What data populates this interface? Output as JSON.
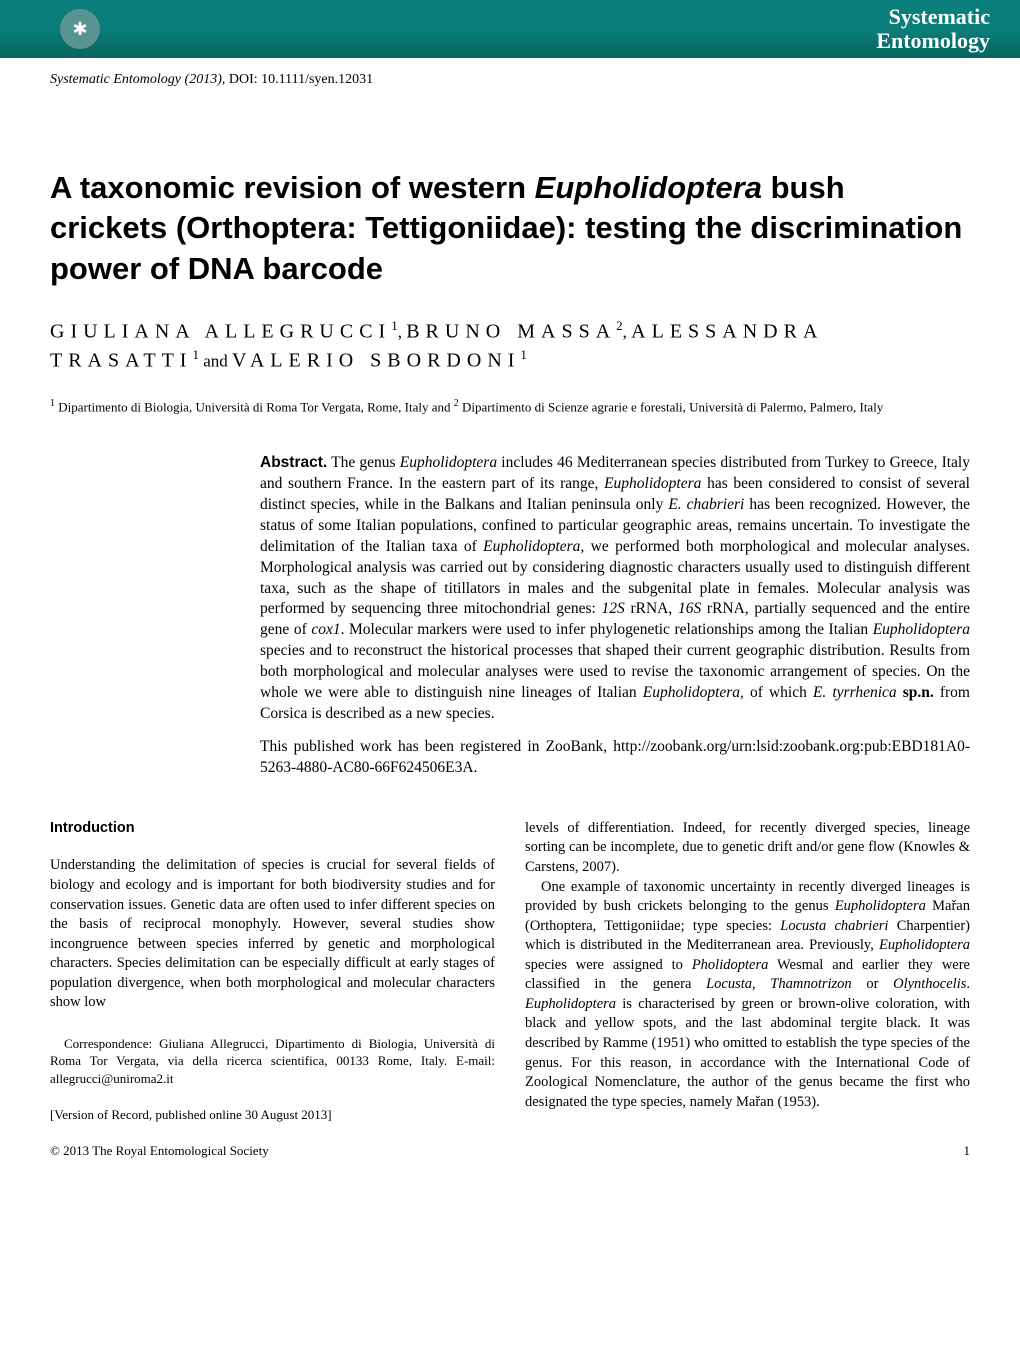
{
  "banner": {
    "journal_line1": "Systematic",
    "journal_line2": "Entomology",
    "background_color": "#0a7e7a",
    "text_color": "#ffffff"
  },
  "citation": {
    "journal": "Systematic Entomology",
    "year": "(2013),",
    "doi_label": "DOI:",
    "doi": "10.1111/syen.12031"
  },
  "title": {
    "part1": "A taxonomic revision of western ",
    "italic1": "Eupholidoptera",
    "part2": " bush crickets (Orthoptera: Tettigoniidae): testing the discrimination power of DNA barcode"
  },
  "authors": {
    "a1_name": "GIULIANA ALLEGRUCCI",
    "a1_sup": "1",
    "sep1": ", ",
    "a2_name": "BRUNO MASSA",
    "a2_sup": "2",
    "sep2": ", ",
    "a3_name": "ALESSANDRA TRASATTI",
    "a3_sup": "1",
    "and": " and ",
    "a4_name": "VALERIO SBORDONI",
    "a4_sup": "1"
  },
  "affiliations": {
    "sup1": "1",
    "aff1": " Dipartimento di Biologia, Università di Roma Tor Vergata, Rome, Italy  and ",
    "sup2": "2",
    "aff2": " Dipartimento di Scienze agrarie e forestali, Università di Palermo, Palmero, Italy"
  },
  "abstract": {
    "label": "Abstract.",
    "p1_part1": " The genus ",
    "p1_italic1": "Eupholidoptera",
    "p1_part2": " includes 46 Mediterranean species distributed from Turkey to Greece, Italy and southern France. In the eastern part of its range, ",
    "p1_italic2": "Eupholidoptera",
    "p1_part3": " has been considered to consist of several distinct species, while in the Balkans and Italian peninsula only ",
    "p1_italic3": "E. chabrieri",
    "p1_part4": " has been recognized. However, the status of some Italian populations, confined to particular geographic areas, remains uncertain. To investigate the delimitation of the Italian taxa of ",
    "p1_italic4": "Eupholidoptera",
    "p1_part5": ", we performed both morphological and molecular analyses. Morphological analysis was carried out by considering diagnostic characters usually used to distinguish different taxa, such as the shape of titillators in males and the subgenital plate in females. Molecular analysis was performed by sequencing three mitochondrial genes: ",
    "p1_italic5": "12S",
    "p1_part6": " rRNA, ",
    "p1_italic6": "16S",
    "p1_part7": " rRNA, partially sequenced and the entire gene of ",
    "p1_italic7": "cox1",
    "p1_part8": ". Molecular markers were used to infer phylogenetic relationships among the Italian ",
    "p1_italic8": "Eupholidoptera",
    "p1_part9": " species and to reconstruct the historical processes that shaped their current geographic distribution. Results from both morphological and molecular analyses were used to revise the taxonomic arrangement of species. On the whole we were able to distinguish nine lineages of Italian ",
    "p1_italic9": "Eupholidoptera",
    "p1_part10": ", of which ",
    "p1_italic10": "E. tyrrhenica",
    "p1_part11": " ",
    "p1_bold": "sp.n.",
    "p1_part12": " from Corsica is described as a new species.",
    "p2": "This published work has been registered in ZooBank, http://zoobank.org/urn:lsid:zoobank.org:pub:EBD181A0-5263-4880-AC80-66F624506E3A."
  },
  "intro": {
    "heading": "Introduction",
    "col1_p1": "Understanding the delimitation of species is crucial for several fields of biology and ecology and is important for both biodiversity studies and for conservation issues. Genetic data are often used to infer different species on the basis of reciprocal monophyly. However, several studies show incongruence between species inferred by genetic and morphological characters. Species delimitation can be especially difficult at early stages of population divergence, when both morphological and molecular characters show low",
    "col2_p1": "levels of differentiation. Indeed, for recently diverged species, lineage sorting can be incomplete, due to genetic drift and/or gene flow (Knowles & Carstens, 2007).",
    "col2_p2_part1": "One example of taxonomic uncertainty in recently diverged lineages is provided by bush crickets belonging to the genus ",
    "col2_p2_italic1": "Eupholidoptera",
    "col2_p2_part2": " Mařan (Orthoptera, Tettigoniidae; type species: ",
    "col2_p2_italic2": "Locusta chabrieri",
    "col2_p2_part3": " Charpentier) which is distributed in the Mediterranean area. Previously, ",
    "col2_p2_italic3": "Eupholidoptera",
    "col2_p2_part4": " species were assigned to ",
    "col2_p2_italic4": "Pholidoptera",
    "col2_p2_part5": " Wesmal and earlier they were classified in the genera ",
    "col2_p2_italic5": "Locusta",
    "col2_p2_part6": ", ",
    "col2_p2_italic6": "Thamnotrizon",
    "col2_p2_part7": " or ",
    "col2_p2_italic7": "Olynthocelis",
    "col2_p2_part8": ". ",
    "col2_p2_italic8": "Eupholidoptera",
    "col2_p2_part9": " is characterised by green or brown-olive coloration, with black and yellow spots, and the last abdominal tergite black. It was described by Ramme (1951) who omitted to establish the type species of the genus. For this reason, in accordance with the International Code of Zoological Nomenclature, the author of the genus became the first who designated the type species, namely Mařan (1953)."
  },
  "correspondence": {
    "text": "Correspondence: Giuliana Allegrucci, Dipartimento di Biologia, Università di Roma Tor Vergata, via della ricerca scientifica, 00133 Rome, Italy. E-mail: allegrucci@uniroma2.it"
  },
  "version": {
    "text": "[Version of Record, published online 30 August 2013]"
  },
  "footer": {
    "copyright": "© 2013 The Royal Entomological Society",
    "page": "1"
  }
}
